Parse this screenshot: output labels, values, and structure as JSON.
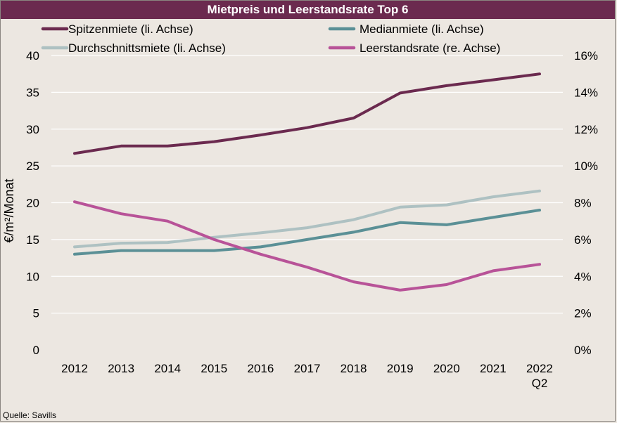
{
  "colors": {
    "background": "#ece7e1",
    "title_bg": "#6b2a4f",
    "grid": "#ffffff"
  },
  "source": "Quelle: Savills",
  "chart_data": {
    "type": "line",
    "title": "Mietpreis und Leerstandsrate Top 6",
    "ylabel": "€/m²/Monat",
    "categories": [
      [
        "2012"
      ],
      [
        "2013"
      ],
      [
        "2014"
      ],
      [
        "2015"
      ],
      [
        "2016"
      ],
      [
        "2017"
      ],
      [
        "2018"
      ],
      [
        "2019"
      ],
      [
        "2020"
      ],
      [
        "2021"
      ],
      [
        "2022",
        "Q2"
      ]
    ],
    "ylim_left": [
      0,
      40
    ],
    "yticks_left": [
      "0",
      "5",
      "10",
      "15",
      "20",
      "25",
      "30",
      "35",
      "40"
    ],
    "ylim_right": [
      0,
      16
    ],
    "yticks_right": [
      "0%",
      "2%",
      "4%",
      "6%",
      "8%",
      "10%",
      "12%",
      "14%",
      "16%"
    ],
    "grid": true,
    "legend_position": "top",
    "series": [
      {
        "name": "Spitzenmiete (li. Achse)",
        "axis": "left",
        "color": "#6b2a4f",
        "values": [
          26.7,
          27.7,
          27.7,
          28.3,
          29.2,
          30.2,
          31.5,
          34.9,
          35.9,
          36.7,
          37.5
        ]
      },
      {
        "name": "Medianmiete (li. Achse)",
        "axis": "left",
        "color": "#5b9096",
        "values": [
          13.0,
          13.5,
          13.5,
          13.5,
          14.0,
          15.0,
          16.0,
          17.3,
          17.0,
          18.0,
          19.0
        ]
      },
      {
        "name": "Durchschnittsmiete (li. Achse)",
        "axis": "left",
        "color": "#aec1c2",
        "values": [
          14.0,
          14.5,
          14.6,
          15.3,
          15.9,
          16.6,
          17.7,
          19.4,
          19.7,
          20.8,
          21.6
        ]
      },
      {
        "name": "Leerstandsrate (re. Achse)",
        "axis": "right",
        "color": "#b85398",
        "values": [
          8.05,
          7.4,
          7.0,
          6.0,
          5.2,
          4.5,
          3.7,
          3.25,
          3.55,
          4.3,
          4.65
        ]
      }
    ]
  }
}
